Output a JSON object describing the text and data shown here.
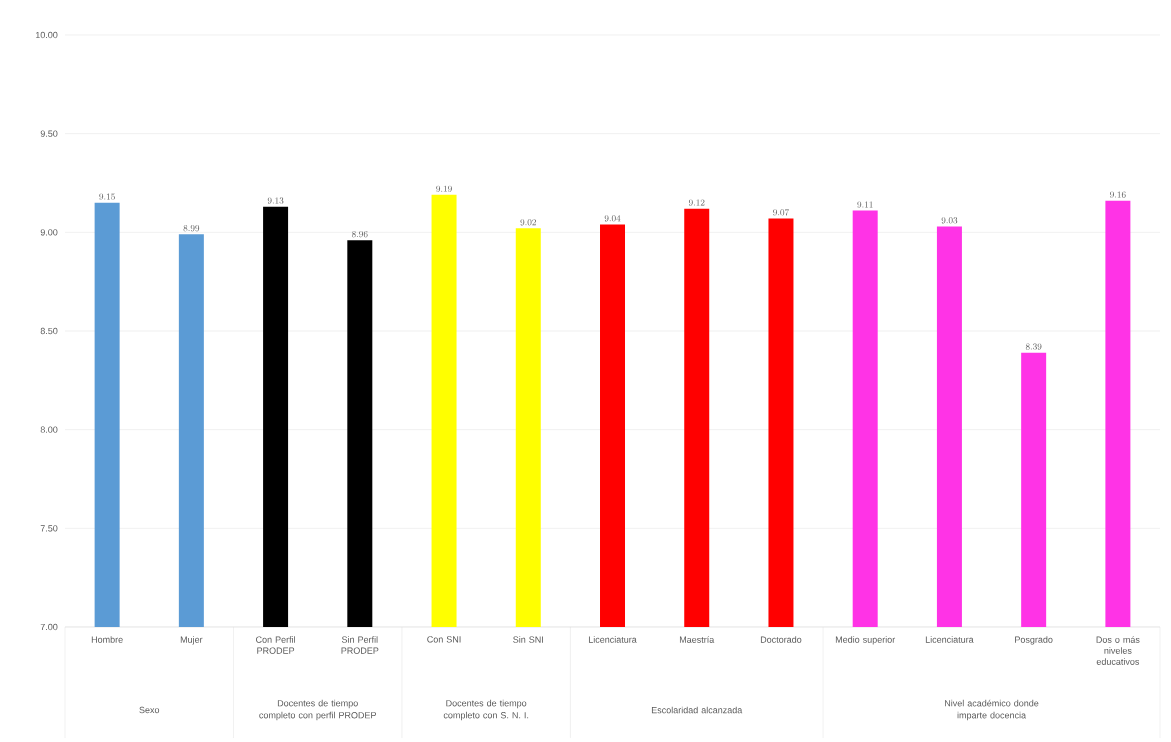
{
  "chart_data": {
    "type": "bar",
    "categories": [
      "Hombre",
      "Mujer",
      "Con Perfil PRODEP",
      "Sin Perfil PRODEP",
      "Con SNI",
      "Sin SNI",
      "Licenciatura",
      "Maestría",
      "Doctorado",
      "Medio superior",
      "Licenciatura",
      "Posgrado",
      "Dos o más niveles educativos"
    ],
    "values": [
      9.15,
      8.99,
      9.13,
      8.96,
      9.19,
      9.02,
      9.04,
      9.12,
      9.07,
      9.11,
      9.03,
      8.39,
      9.16
    ],
    "colors": [
      "#5b9bd5",
      "#5b9bd5",
      "#000000",
      "#000000",
      "#ffff00",
      "#ffff00",
      "#ff0000",
      "#ff0000",
      "#ff0000",
      "#ff33e6",
      "#ff33e6",
      "#ff33e6",
      "#ff33e6"
    ],
    "ylim": [
      7,
      10
    ],
    "yticks": [
      {
        "value": 7,
        "label": "7.00"
      },
      {
        "value": 7.5,
        "label": "7.50"
      },
      {
        "value": 8,
        "label": "8.00"
      },
      {
        "value": 8.5,
        "label": "8.50"
      },
      {
        "value": 9,
        "label": "9.00"
      },
      {
        "value": 9.5,
        "label": "9.50"
      },
      {
        "value": 10,
        "label": "10.00"
      }
    ],
    "grid": "y",
    "data_labels": true,
    "annotations": [
      "Sexo",
      "Docentes de tiempo completo con perfil PRODEP",
      "Docentes de tiempo completo con S. N. I.",
      "Escolaridad alcanzada",
      "Nivel académico donde imparte docencia"
    ]
  }
}
